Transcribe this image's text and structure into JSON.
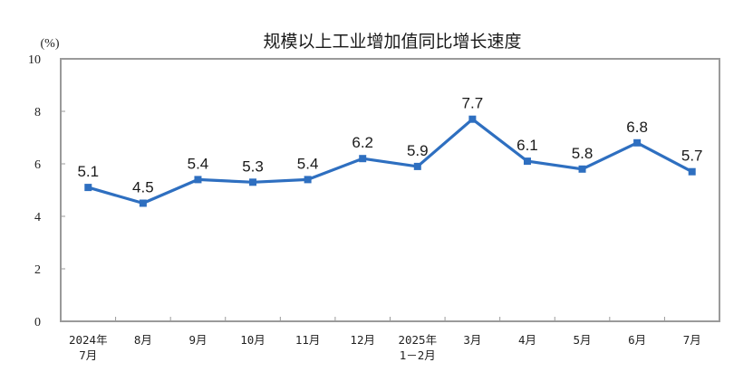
{
  "chart_data": {
    "type": "line",
    "title": "规模以上工业增加值同比增长速度",
    "unit_label": "(%)",
    "xlabel": "",
    "ylabel": "(%)",
    "ylim": [
      0,
      10
    ],
    "yticks": [
      0,
      2,
      4,
      6,
      8,
      10
    ],
    "grid": false,
    "legend": null,
    "categories": [
      [
        "2024年",
        "7月"
      ],
      [
        "8月"
      ],
      [
        "9月"
      ],
      [
        "10月"
      ],
      [
        "11月"
      ],
      [
        "12月"
      ],
      [
        "2025年",
        "1－2月"
      ],
      [
        "3月"
      ],
      [
        "4月"
      ],
      [
        "5月"
      ],
      [
        "6月"
      ],
      [
        "7月"
      ]
    ],
    "series": [
      {
        "name": "规模以上工业增加值同比增长速度",
        "color": "#2e6fc0",
        "values": [
          5.1,
          4.5,
          5.4,
          5.3,
          5.4,
          6.2,
          5.9,
          7.7,
          6.1,
          5.8,
          6.8,
          5.7
        ],
        "labels": [
          "5.1",
          "4.5",
          "5.4",
          "5.3",
          "5.4",
          "6.2",
          "5.9",
          "7.7",
          "6.1",
          "5.8",
          "6.8",
          "5.7"
        ]
      }
    ]
  },
  "colors": {
    "line": "#2e6fc0",
    "axis": "#9a9a9a",
    "text": "#222222"
  }
}
